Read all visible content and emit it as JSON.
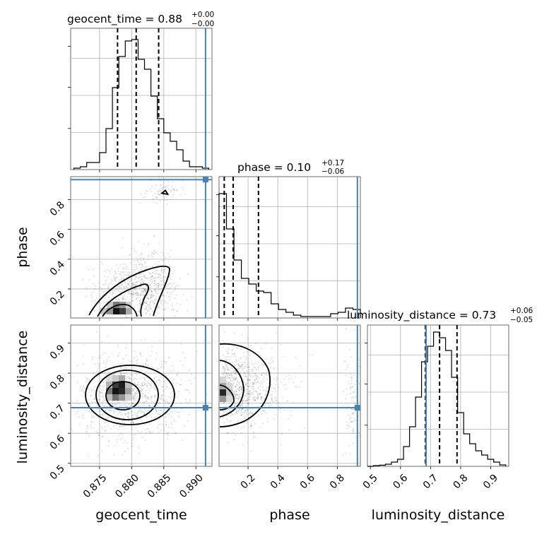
{
  "chart_data": {
    "type": "corner",
    "truth_color": "#4682b4",
    "parameters": [
      {
        "name": "geocent_time",
        "label": "geocent_time",
        "range": [
          0.8705,
          0.8925
        ],
        "ticks": [
          0.875,
          0.88,
          0.885,
          0.89
        ],
        "tick_labels": [
          "0.875",
          "0.880",
          "0.885",
          "0.890"
        ],
        "truth": 0.8915
      },
      {
        "name": "phase",
        "label": "phase",
        "range": [
          0.005,
          0.955
        ],
        "ticks": [
          0.2,
          0.4,
          0.6,
          0.8
        ],
        "tick_labels": [
          "0.2",
          "0.4",
          "0.6",
          "0.8"
        ],
        "truth": 0.935
      },
      {
        "name": "luminosity_distance",
        "label": "luminosity_distance",
        "range": [
          0.49,
          0.96
        ],
        "ticks": [
          0.5,
          0.6,
          0.7,
          0.8,
          0.9
        ],
        "tick_labels": [
          "0.5",
          "0.6",
          "0.7",
          "0.8",
          "0.9"
        ],
        "truth": 0.685
      }
    ],
    "titles": [
      {
        "text": "geocent_time = 0.88",
        "sup": "+0.00",
        "sub": "−0.00"
      },
      {
        "text": "phase = 0.10",
        "sup": "+0.17",
        "sub": "−0.06"
      },
      {
        "text": "luminosity_distance = 0.73",
        "sup": "+0.06",
        "sub": "−0.05"
      }
    ],
    "histograms": [
      {
        "param": "geocent_time",
        "bin_edges": [
          0.871,
          0.872,
          0.873,
          0.874,
          0.875,
          0.876,
          0.877,
          0.878,
          0.879,
          0.88,
          0.881,
          0.882,
          0.883,
          0.884,
          0.885,
          0.886,
          0.887,
          0.888,
          0.889,
          0.89,
          0.891,
          0.892
        ],
        "counts": [
          0.01,
          0.02,
          0.05,
          0.05,
          0.12,
          0.29,
          0.58,
          0.8,
          0.91,
          0.92,
          0.78,
          0.71,
          0.52,
          0.36,
          0.26,
          0.2,
          0.14,
          0.06,
          0.02,
          0.02,
          0.01
        ],
        "quantiles": [
          0.8778,
          0.8807,
          0.8842
        ]
      },
      {
        "param": "phase",
        "bin_edges": [
          0.005,
          0.055,
          0.105,
          0.155,
          0.205,
          0.255,
          0.305,
          0.355,
          0.405,
          0.455,
          0.505,
          0.555,
          0.605,
          0.655,
          0.705,
          0.755,
          0.805,
          0.855,
          0.905,
          0.955
        ],
        "counts": [
          0.88,
          0.63,
          0.41,
          0.28,
          0.24,
          0.19,
          0.18,
          0.1,
          0.06,
          0.04,
          0.02,
          0.01,
          0.01,
          0.01,
          0.01,
          0.03,
          0.04,
          0.07,
          0.06
        ],
        "quantiles": [
          0.04,
          0.1,
          0.27
        ]
      },
      {
        "param": "luminosity_distance",
        "bin_edges": [
          0.49,
          0.51,
          0.53,
          0.55,
          0.57,
          0.59,
          0.61,
          0.63,
          0.65,
          0.67,
          0.69,
          0.71,
          0.73,
          0.75,
          0.77,
          0.79,
          0.81,
          0.83,
          0.85,
          0.87,
          0.89,
          0.91,
          0.93,
          0.95
        ],
        "counts": [
          0.0,
          0.005,
          0.008,
          0.015,
          0.03,
          0.05,
          0.14,
          0.28,
          0.49,
          0.74,
          0.85,
          0.95,
          0.91,
          0.82,
          0.63,
          0.38,
          0.23,
          0.16,
          0.11,
          0.08,
          0.05,
          0.03,
          0.01
        ],
        "quantiles": [
          0.683,
          0.73,
          0.788
        ]
      }
    ],
    "contours_2d": [
      {
        "x": "geocent_time",
        "y": "phase",
        "peak": [
          0.879,
          0.04
        ],
        "secondary_mode": [
          0.8865,
          0.855
        ],
        "scatter_range_x": [
          0.873,
          0.891
        ],
        "scatter_range_y": [
          0.0,
          0.955
        ]
      },
      {
        "x": "geocent_time",
        "y": "luminosity_distance",
        "peak": [
          0.88,
          0.725
        ],
        "scatter_range_x": [
          0.8725,
          0.8905
        ],
        "scatter_range_y": [
          0.6,
          0.88
        ]
      },
      {
        "x": "phase",
        "y": "luminosity_distance",
        "peak": [
          0.02,
          0.7
        ],
        "scatter_range_x": [
          0.0,
          0.955
        ],
        "scatter_range_y": [
          0.6,
          0.85
        ]
      }
    ]
  }
}
